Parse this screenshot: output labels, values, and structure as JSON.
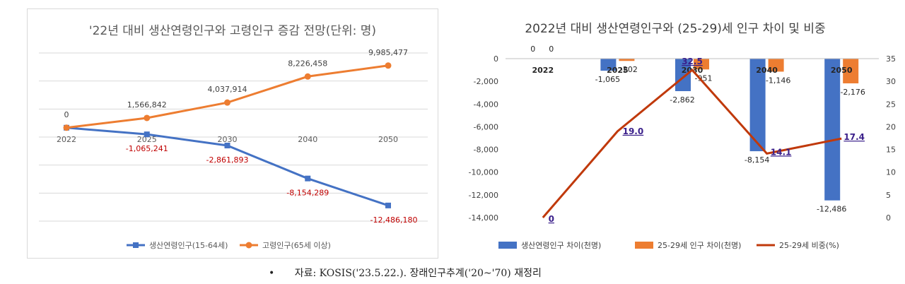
{
  "chart_data": [
    {
      "type": "line",
      "title": "'22년 대비 생산연령인구와 고령인구 증감 전망(단위: 명)",
      "categories": [
        "2022",
        "2025",
        "2030",
        "2040",
        "2050"
      ],
      "ylim": [
        -15000000,
        12000000
      ],
      "grid": true,
      "legend": "bottom",
      "series": [
        {
          "name": "생산연령인구(15-64세)",
          "color": "#4472c4",
          "values": [
            0,
            -1065241,
            -2861893,
            -8154289,
            -12486180
          ],
          "labels": [
            "0",
            "-1,065,241",
            "-2,861,893",
            "-8,154,289",
            "-12,486,180"
          ],
          "label_color": "#c00000"
        },
        {
          "name": "고령인구(65세 이상)",
          "color": "#ed7d31",
          "values": [
            0,
            1566842,
            4037914,
            8226458,
            9985477
          ],
          "labels": [
            "0",
            "1,566,842",
            "4,037,914",
            "8,226,458",
            "9,985,477"
          ],
          "label_color": "#404040"
        }
      ]
    },
    {
      "type": "bar",
      "title": "2022년 대비 생산연령인구와 (25-29)세 인구 차이 및 비중",
      "categories": [
        "2022",
        "2025",
        "2030",
        "2040",
        "2050"
      ],
      "ylim": [
        -14000,
        0
      ],
      "y2lim": [
        0,
        35
      ],
      "yticks": [
        "0",
        "-2,000",
        "-4,000",
        "-6,000",
        "-8,000",
        "-10,000",
        "-12,000",
        "-14,000"
      ],
      "y2ticks": [
        "35",
        "30",
        "25",
        "20",
        "15",
        "10",
        "5",
        "0"
      ],
      "legend": "bottom",
      "series": [
        {
          "name": "생산연령인구 차이(천명)",
          "color": "#4472c4",
          "values": [
            0,
            -1065,
            -2862,
            -8154,
            -12486
          ],
          "labels": [
            "0",
            "-1,065",
            "-2,862",
            "-8,154",
            "-12,486"
          ]
        },
        {
          "name": "25-29세 인구 차이(천명)",
          "color": "#ed7d31",
          "values": [
            0,
            -202,
            -951,
            -1146,
            -2176
          ],
          "labels": [
            "0",
            "-202",
            "-951",
            "-1,146",
            "-2,176"
          ]
        },
        {
          "name": "25-29세 비중(%)",
          "color": "#c0390b",
          "axis": "right",
          "values": [
            0,
            19.0,
            32.5,
            14.1,
            17.4
          ],
          "labels": [
            "0",
            "19.0",
            "32.5",
            "14.1",
            "17.4"
          ],
          "label_color": "#3a1f8a"
        }
      ]
    }
  ],
  "source_note": {
    "bullet": "•",
    "text": "자료: KOSIS('23.5.22.). 장래인구추계('20~'70) 재정리"
  }
}
